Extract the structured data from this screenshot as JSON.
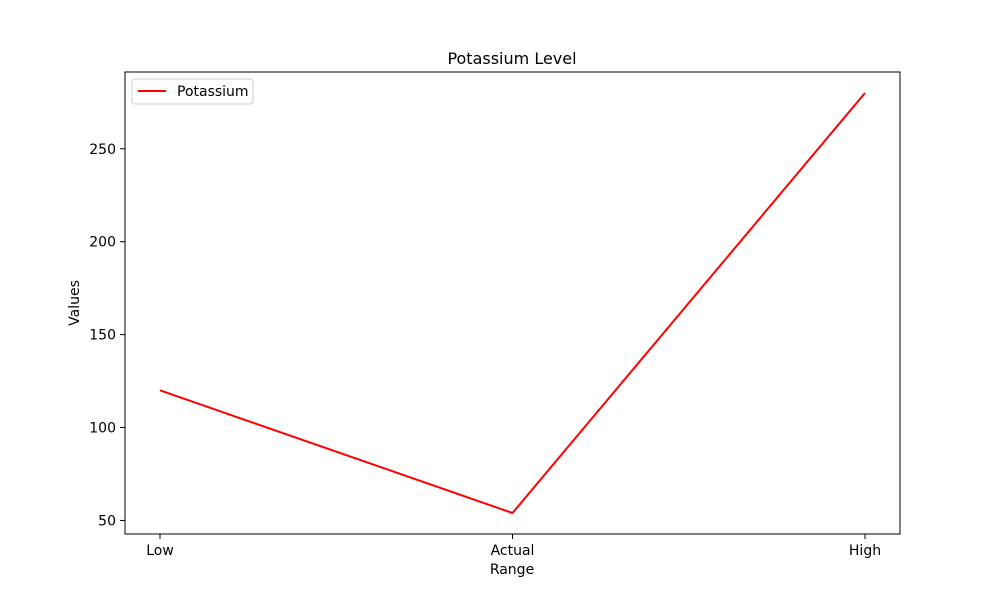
{
  "chart_data": {
    "type": "line",
    "title": "Potassium Level",
    "xlabel": "Range",
    "ylabel": "Values",
    "categories": [
      "Low",
      "Actual",
      "High"
    ],
    "series": [
      {
        "name": "Potassium",
        "values": [
          120,
          54,
          280
        ],
        "color": "#ff0000"
      }
    ],
    "ylim": [
      42.7,
      291.3
    ],
    "yticks": [
      50,
      100,
      150,
      200,
      250
    ],
    "grid": false,
    "legend_position": "upper left"
  }
}
